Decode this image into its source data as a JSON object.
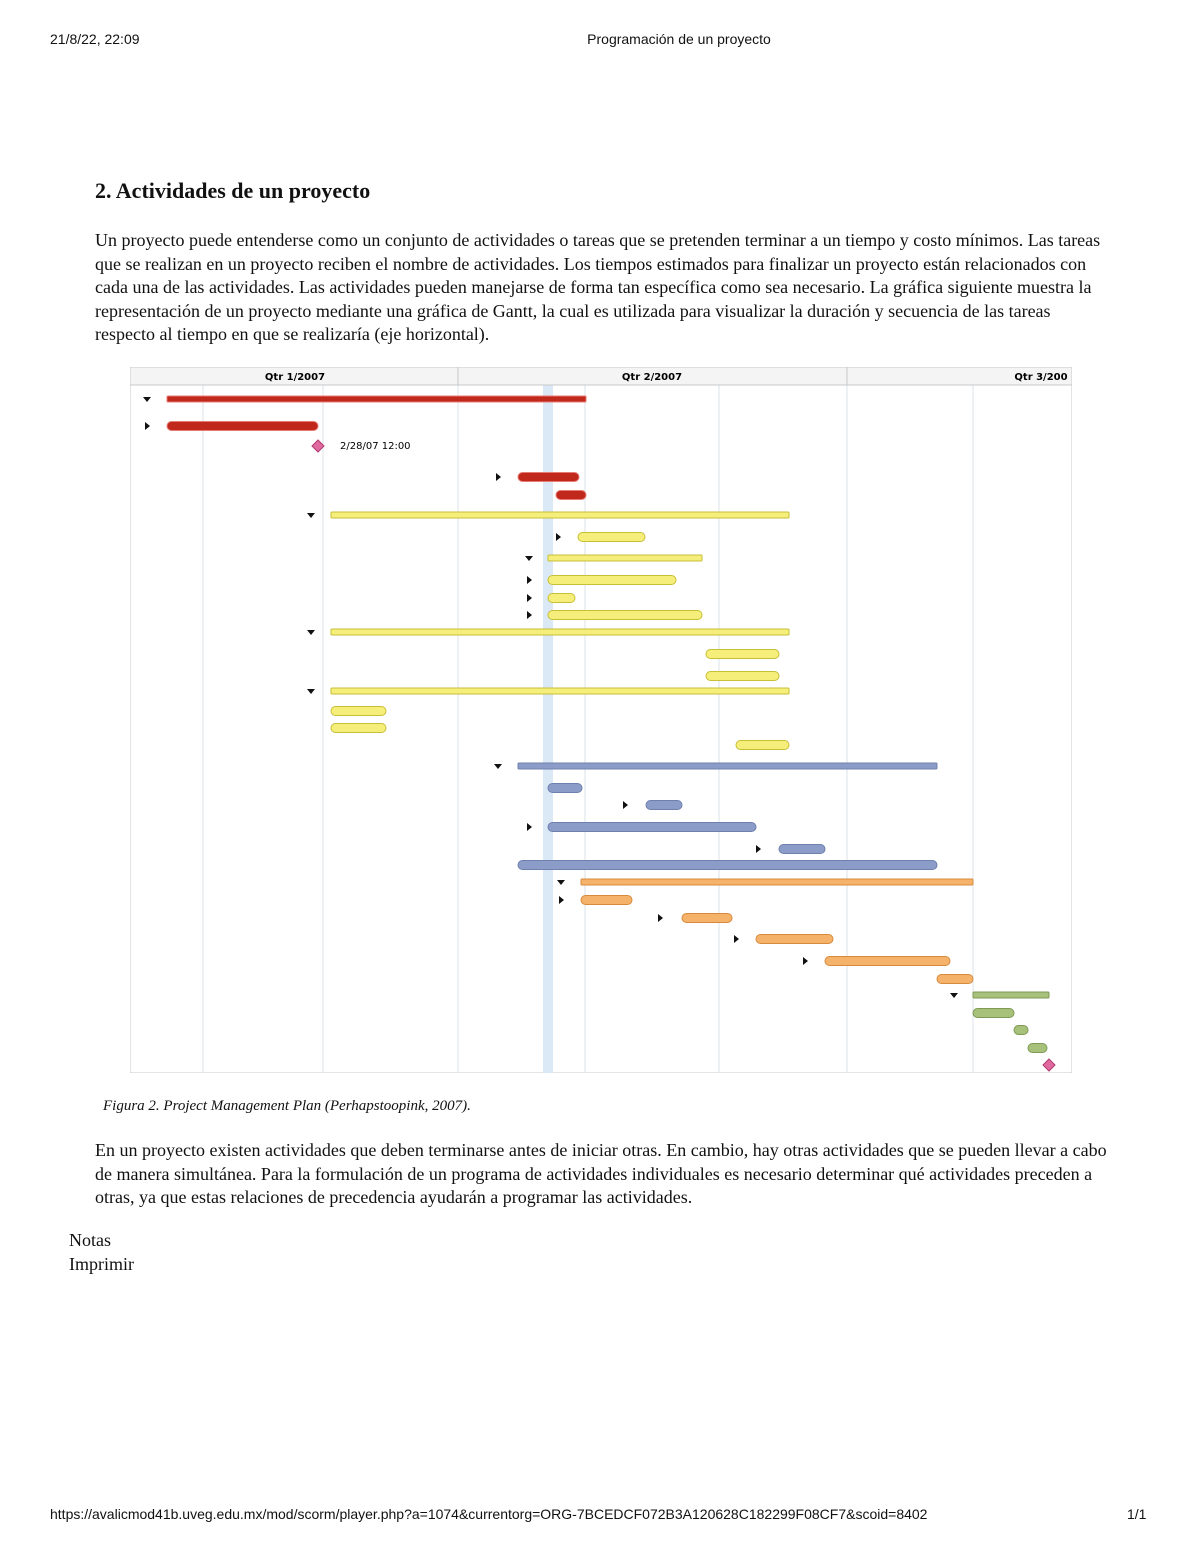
{
  "header": {
    "datetime": "21/8/22, 22:09",
    "title": "Programación de un proyecto"
  },
  "section": {
    "heading": "2. Actividades de un proyecto",
    "paragraph": "Un proyecto puede entenderse como un conjunto de actividades o tareas que se pretenden terminar a un tiempo y costo mínimos. Las tareas que se realizan en un proyecto reciben el nombre de actividades. Los tiempos estimados para finalizar un proyecto están relacionados con cada una de las actividades. Las actividades pueden manejarse de forma tan específica como sea necesario. La gráfica siguiente muestra la representación de un proyecto mediante una gráfica de Gantt, la cual es utilizada para visualizar la duración y secuencia de las tareas respecto al tiempo en que se realizaría (eje horizontal)."
  },
  "figure": {
    "columns": [
      "Qtr 1/2007",
      "Qtr 2/2007",
      "Qtr 3/200"
    ],
    "milestone_label": "2/28/07 12:00",
    "caption": "Figura 2. Project Management Plan (Perhapstoopink, 2007)."
  },
  "closing": {
    "paragraph": "En un proyecto existen actividades que deben terminarse antes de iniciar otras. En cambio, hay otras actividades que se pueden llevar a cabo de manera simultánea. Para la formulación de un programa de actividades individuales es necesario determinar qué actividades preceden a otras, ya que estas relaciones de precedencia ayudarán a programar las actividades."
  },
  "links": [
    "Notas",
    "Imprimir"
  ],
  "footer": {
    "url": "https://avalicmod41b.uveg.edu.mx/mod/scorm/player.php?a=1074&currentorg=ORG-7BCEDCF072B3A120628C182299F08CF7&scoid=8402",
    "page": "1/1"
  }
}
